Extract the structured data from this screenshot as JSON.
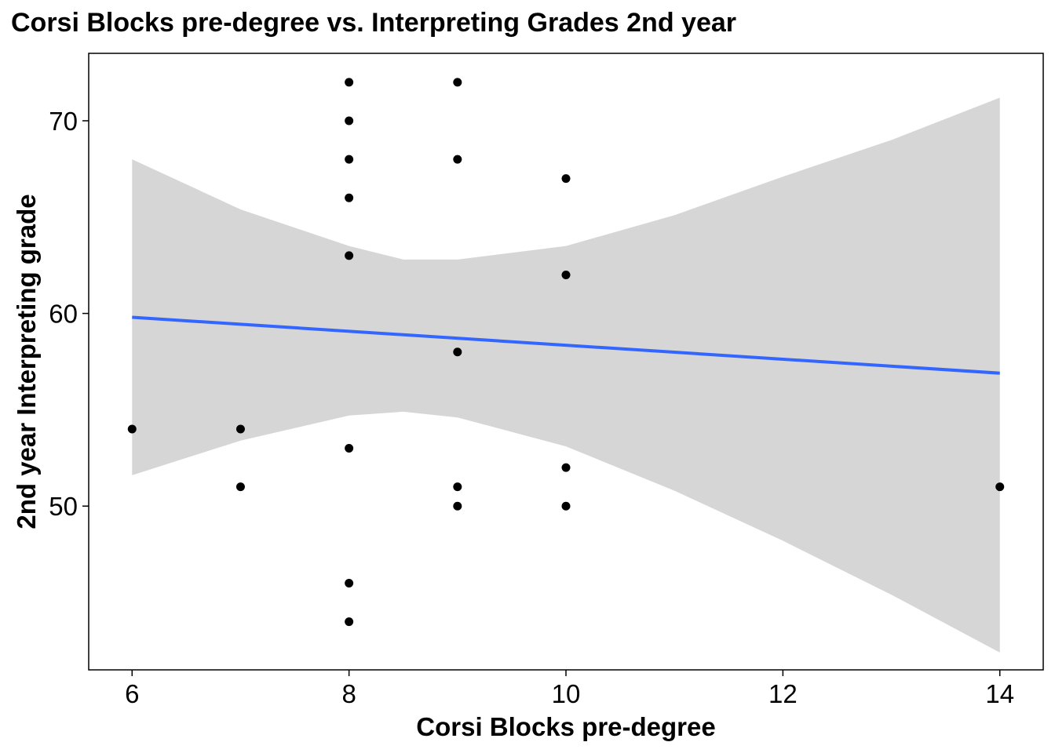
{
  "chart_data": {
    "type": "scatter",
    "title": "Corsi Blocks pre-degree vs. Interpreting Grades 2nd year",
    "xlabel": "Corsi Blocks pre-degree",
    "ylabel": "2nd year Interpreting grade",
    "xlim": [
      5.6,
      14.4
    ],
    "ylim": [
      41.5,
      73.5
    ],
    "x_ticks": [
      6,
      8,
      10,
      12,
      14
    ],
    "y_ticks": [
      50,
      60,
      70
    ],
    "grid": false,
    "points": [
      {
        "x": 6,
        "y": 54
      },
      {
        "x": 7,
        "y": 54
      },
      {
        "x": 7,
        "y": 51
      },
      {
        "x": 8,
        "y": 72
      },
      {
        "x": 8,
        "y": 70
      },
      {
        "x": 8,
        "y": 68
      },
      {
        "x": 8,
        "y": 66
      },
      {
        "x": 8,
        "y": 63
      },
      {
        "x": 8,
        "y": 53
      },
      {
        "x": 8,
        "y": 46
      },
      {
        "x": 8,
        "y": 44
      },
      {
        "x": 9,
        "y": 72
      },
      {
        "x": 9,
        "y": 68
      },
      {
        "x": 9,
        "y": 58
      },
      {
        "x": 9,
        "y": 51
      },
      {
        "x": 9,
        "y": 50
      },
      {
        "x": 10,
        "y": 67
      },
      {
        "x": 10,
        "y": 62
      },
      {
        "x": 10,
        "y": 52
      },
      {
        "x": 10,
        "y": 50
      },
      {
        "x": 14,
        "y": 51
      }
    ],
    "trend_line": {
      "method": "linear",
      "color": "#3366ff",
      "x": [
        6,
        14
      ],
      "y": [
        59.8,
        56.9
      ]
    },
    "confidence_band": {
      "color": "#d6d6d6",
      "x": [
        6,
        7,
        8,
        8.5,
        9,
        10,
        11,
        12,
        13,
        14
      ],
      "lower": [
        51.6,
        53.4,
        54.7,
        54.9,
        54.6,
        53.1,
        50.8,
        48.2,
        45.4,
        42.4
      ],
      "upper": [
        68.0,
        65.4,
        63.5,
        62.8,
        62.8,
        63.5,
        65.1,
        67.1,
        69.0,
        71.2
      ]
    },
    "point_color": "#000000"
  }
}
